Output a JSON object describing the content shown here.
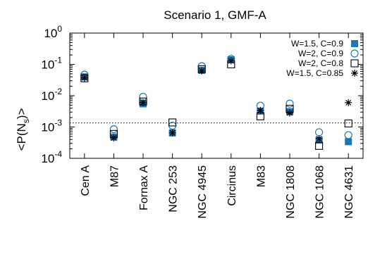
{
  "chart_data": {
    "type": "scatter",
    "title": "Scenario 1, GMF-A",
    "ylabel": "<P(N",
    "ylabel_sub": "s",
    "ylabel_end": ")>",
    "yscale": "log",
    "ylim": [
      0.0001,
      1
    ],
    "yticks": [
      {
        "value": 1,
        "base": "10",
        "exp": "0"
      },
      {
        "value": 0.1,
        "base": "10",
        "exp": "-1"
      },
      {
        "value": 0.01,
        "base": "10",
        "exp": "-2"
      },
      {
        "value": 0.001,
        "base": "10",
        "exp": "-3"
      },
      {
        "value": 0.0001,
        "base": "10",
        "exp": "-4"
      }
    ],
    "categories": [
      "Cen A",
      "M87",
      "Fornax A",
      "NGC 253",
      "NGC 4945",
      "Circinus",
      "M83",
      "NGC 1808",
      "NGC 1068",
      "NGC 4631"
    ],
    "reference_line": {
      "value": 0.00135,
      "style": "dotted"
    },
    "legend_position": "top-right",
    "series": [
      {
        "name": "W=1.5, C=0.9",
        "marker": "filled-square",
        "color": "#1f77b4",
        "values": [
          0.04,
          0.00048,
          0.0055,
          0.00065,
          0.065,
          0.14,
          0.0032,
          0.0031,
          0.00038,
          0.00034
        ]
      },
      {
        "name": "W=2, C=0.9",
        "marker": "open-circle",
        "color": "#1f77b4",
        "values": [
          0.047,
          0.00085,
          0.0092,
          0.0011,
          0.088,
          0.15,
          0.0048,
          0.0056,
          0.00068,
          0.00055
        ]
      },
      {
        "name": "W=2, C=0.8",
        "marker": "open-square",
        "color": "#000000",
        "values": [
          0.036,
          0.0006,
          0.0065,
          0.0014,
          0.07,
          0.1,
          0.0022,
          0.0038,
          0.00025,
          0.0013
        ]
      },
      {
        "name": "W=1.5, C=0.85",
        "marker": "star",
        "color": "#000000",
        "values": [
          0.037,
          0.00045,
          0.006,
          0.00065,
          0.062,
          0.13,
          0.0034,
          0.0028,
          0.00042,
          0.006
        ]
      }
    ]
  }
}
